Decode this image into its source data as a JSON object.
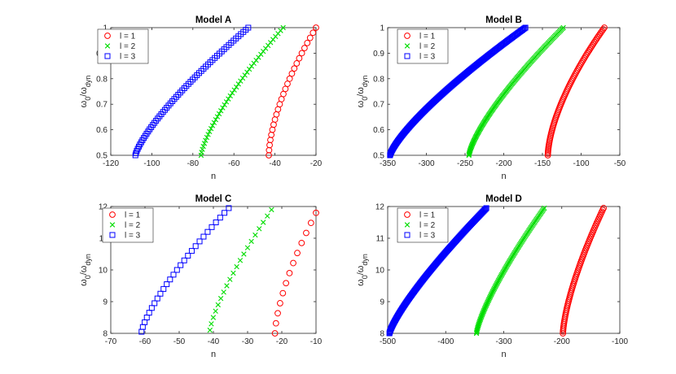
{
  "chart_data": [
    {
      "type": "scatter",
      "title": "Model A",
      "xlabel": "n",
      "ylabel": "ω0/ωdyn",
      "xlim": [
        -120,
        -20
      ],
      "ylim": [
        0.5,
        1
      ],
      "xticks": [
        -120,
        -100,
        -80,
        -60,
        -40,
        -20
      ],
      "yticks": [
        0.5,
        0.6,
        0.7,
        0.8,
        0.9,
        1
      ],
      "xtick_labels": [
        "-120",
        "-100",
        "-80",
        "-60",
        "-40",
        "-20"
      ],
      "ytick_labels": [
        "0.5",
        "0.6",
        "0.7",
        "0.8",
        "0.9",
        "1"
      ],
      "series": [
        {
          "name": "l = 1",
          "marker": "circle",
          "color": "#ff0000",
          "start": [
            -43,
            0.5
          ],
          "end": [
            -20,
            1.0
          ],
          "curve": 1.6,
          "count": 26
        },
        {
          "name": "l = 2",
          "marker": "x",
          "color": "#00dd00",
          "start": [
            -76,
            0.5
          ],
          "end": [
            -36,
            1.0
          ],
          "curve": 1.35,
          "count": 44
        },
        {
          "name": "l = 3",
          "marker": "square",
          "color": "#0000ff",
          "start": [
            -108,
            0.5
          ],
          "end": [
            -53,
            1.0
          ],
          "curve": 1.3,
          "count": 60
        }
      ],
      "legend": {
        "location": "top-left",
        "labels": [
          "l = 1",
          "l = 2",
          "l = 3"
        ]
      }
    },
    {
      "type": "scatter",
      "title": "Model B",
      "xlabel": "n",
      "ylabel": "ω0/ωdyn",
      "xlim": [
        -350,
        -50
      ],
      "ylim": [
        0.5,
        1
      ],
      "xticks": [
        -350,
        -300,
        -250,
        -200,
        -150,
        -100,
        -50
      ],
      "yticks": [
        0.5,
        0.6,
        0.7,
        0.8,
        0.9,
        1
      ],
      "xtick_labels": [
        "-350",
        "-300",
        "-250",
        "-200",
        "-150",
        "-100",
        "-50"
      ],
      "ytick_labels": [
        "0.5",
        "0.6",
        "0.7",
        "0.8",
        "0.9",
        "1"
      ],
      "series": [
        {
          "name": "l = 1",
          "marker": "circle",
          "color": "#ff0000",
          "start": [
            -143,
            0.5
          ],
          "end": [
            -70,
            1.0
          ],
          "curve": 1.6,
          "count": 80
        },
        {
          "name": "l = 2",
          "marker": "x",
          "color": "#00dd00",
          "start": [
            -245,
            0.5
          ],
          "end": [
            -123,
            1.0
          ],
          "curve": 1.35,
          "count": 130
        },
        {
          "name": "l = 3",
          "marker": "square",
          "color": "#0000ff",
          "start": [
            -347,
            0.5
          ],
          "end": [
            -172,
            1.0
          ],
          "curve": 1.3,
          "count": 180
        }
      ],
      "legend": {
        "location": "top-center",
        "labels": [
          "l = 1",
          "l = 2",
          "l = 3"
        ]
      }
    },
    {
      "type": "scatter",
      "title": "Model C",
      "xlabel": "n",
      "ylabel": "ω0/ωdyn",
      "xlim": [
        -70,
        -10
      ],
      "ylim": [
        8,
        12
      ],
      "xticks": [
        -70,
        -60,
        -50,
        -40,
        -30,
        -20,
        -10
      ],
      "yticks": [
        8,
        9,
        10,
        11,
        12
      ],
      "xtick_labels": [
        "-70",
        "-60",
        "-50",
        "-40",
        "-30",
        "-20",
        "-10"
      ],
      "ytick_labels": [
        "8",
        "9",
        "10",
        "11",
        "12"
      ],
      "series": [
        {
          "name": "l = 1",
          "marker": "circle",
          "color": "#ff0000",
          "start": [
            -22,
            8.0
          ],
          "end": [
            -10,
            11.8
          ],
          "curve": 1.5,
          "count": 13
        },
        {
          "name": "l = 2",
          "marker": "x",
          "color": "#00dd00",
          "start": [
            -41,
            8.1
          ],
          "end": [
            -23,
            11.9
          ],
          "curve": 1.3,
          "count": 20
        },
        {
          "name": "l = 3",
          "marker": "square",
          "color": "#0000ff",
          "start": [
            -61,
            8.05
          ],
          "end": [
            -35.5,
            11.95
          ],
          "curve": 1.3,
          "count": 27
        }
      ],
      "legend": {
        "location": "top-center",
        "labels": [
          "l = 1",
          "l = 2",
          "l = 3"
        ]
      }
    },
    {
      "type": "scatter",
      "title": "Model D",
      "xlabel": "n",
      "ylabel": "ω0/ωdyn",
      "xlim": [
        -500,
        -100
      ],
      "ylim": [
        8,
        12
      ],
      "xticks": [
        -500,
        -400,
        -300,
        -200,
        -100
      ],
      "yticks": [
        8,
        9,
        10,
        11,
        12
      ],
      "xtick_labels": [
        "-500",
        "-400",
        "-300",
        "-200",
        "-100"
      ],
      "ytick_labels": [
        "8",
        "9",
        "10",
        "11",
        "12"
      ],
      "series": [
        {
          "name": "l = 1",
          "marker": "circle",
          "color": "#ff0000",
          "start": [
            -198,
            8.0
          ],
          "end": [
            -128,
            11.95
          ],
          "curve": 1.45,
          "count": 70
        },
        {
          "name": "l = 2",
          "marker": "x",
          "color": "#00dd00",
          "start": [
            -347,
            8.0
          ],
          "end": [
            -230,
            11.95
          ],
          "curve": 1.3,
          "count": 110
        },
        {
          "name": "l = 3",
          "marker": "square",
          "color": "#0000ff",
          "start": [
            -497,
            8.0
          ],
          "end": [
            -330,
            11.95
          ],
          "curve": 1.25,
          "count": 150
        }
      ],
      "legend": {
        "location": "top-left",
        "labels": [
          "l = 1",
          "l = 2",
          "l = 3"
        ]
      }
    }
  ]
}
